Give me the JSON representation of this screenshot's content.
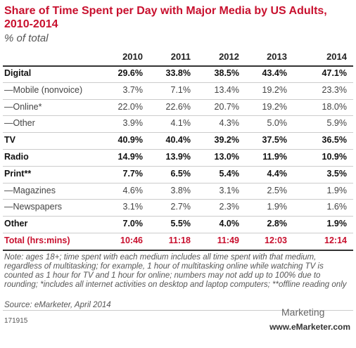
{
  "header": {
    "title": "Share of Time Spent per Day with Major Media by US Adults, 2010-2014",
    "subtitle": "% of total"
  },
  "table": {
    "columns": [
      "2010",
      "2011",
      "2012",
      "2013",
      "2014"
    ],
    "rows": [
      {
        "label": "Digital",
        "values": [
          "29.6%",
          "33.8%",
          "38.5%",
          "43.4%",
          "47.1%"
        ]
      },
      {
        "label": "—Mobile (nonvoice)",
        "values": [
          "3.7%",
          "7.1%",
          "13.4%",
          "19.2%",
          "23.3%"
        ]
      },
      {
        "label": "—Online*",
        "values": [
          "22.0%",
          "22.6%",
          "20.7%",
          "19.2%",
          "18.0%"
        ]
      },
      {
        "label": "—Other",
        "values": [
          "3.9%",
          "4.1%",
          "4.3%",
          "5.0%",
          "5.9%"
        ]
      },
      {
        "label": "TV",
        "values": [
          "40.9%",
          "40.4%",
          "39.2%",
          "37.5%",
          "36.5%"
        ]
      },
      {
        "label": "Radio",
        "values": [
          "14.9%",
          "13.9%",
          "13.0%",
          "11.9%",
          "10.9%"
        ]
      },
      {
        "label": "Print**",
        "values": [
          "7.7%",
          "6.5%",
          "5.4%",
          "4.4%",
          "3.5%"
        ]
      },
      {
        "label": "—Magazines",
        "values": [
          "4.6%",
          "3.8%",
          "3.1%",
          "2.5%",
          "1.9%"
        ]
      },
      {
        "label": "—Newspapers",
        "values": [
          "3.1%",
          "2.7%",
          "2.3%",
          "1.9%",
          "1.6%"
        ]
      },
      {
        "label": "Other",
        "values": [
          "7.0%",
          "5.5%",
          "4.0%",
          "2.8%",
          "1.9%"
        ]
      },
      {
        "label": "Total (hrs:mins)",
        "values": [
          "10:46",
          "11:18",
          "11:49",
          "12:03",
          "12:14"
        ]
      }
    ]
  },
  "footer": {
    "note": "Note: ages 18+; time spent with each medium includes all time spent with that medium, regardless of multitasking; for example, 1 hour of multitasking online while watching TV is counted as 1 hour for TV and 1 hour for online; numbers may not add up to 100% due to rounding; *includes all internet activities on desktop and laptop computers; **offline reading only",
    "source": "Source: eMarketer, April 2014",
    "id": "171915",
    "site": "www.eMarketer.com",
    "watermark": "Marketing"
  }
}
